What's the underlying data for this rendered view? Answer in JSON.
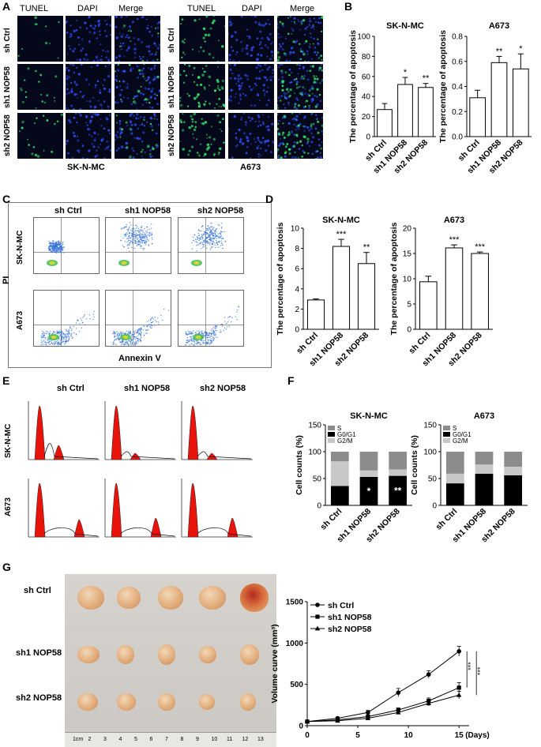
{
  "panels": {
    "A": {
      "letter": "A",
      "columns": [
        "TUNEL",
        "DAPI",
        "Merge"
      ],
      "rows": [
        "sh Ctrl",
        "sh1 NOP58",
        "sh2 NOP58"
      ],
      "cell_lines": [
        "SK-N-MC",
        "A673"
      ]
    },
    "C": {
      "letter": "C",
      "columns": [
        "sh Ctrl",
        "sh1 NOP58",
        "sh2 NOP58"
      ],
      "rows": [
        "SK-N-MC",
        "A673"
      ],
      "y_label": "PI",
      "x_label": "Annexin V"
    },
    "E": {
      "letter": "E",
      "columns": [
        "sh Ctrl",
        "sh1 NOP58",
        "sh2 NOP58"
      ],
      "rows": [
        "SK-N-MC",
        "A673"
      ]
    },
    "G": {
      "letter": "G",
      "rows": [
        "sh Ctrl",
        "sh1 NOP58",
        "sh2 NOP58"
      ],
      "ruler": [
        "1cm",
        "2",
        "3",
        "4",
        "5",
        "6",
        "7",
        "8",
        "9",
        "10",
        "11",
        "12",
        "13"
      ]
    }
  },
  "colors": {
    "bar": "#ffffff",
    "g0g1": "#000000",
    "s": "#8c8c8c",
    "g2m": "#c8c8c8",
    "peak": "#e8140c",
    "tunel": "#2ee86a",
    "dapi": "#2a4cf0"
  },
  "chart_data": [
    {
      "id": "B1",
      "letter": "B",
      "type": "bar",
      "title": "SK-N-MC",
      "ylabel": "The percentage of apoptosis",
      "ylim": [
        0,
        100
      ],
      "yticks": [
        0,
        20,
        40,
        60,
        80,
        100
      ],
      "categories": [
        "sh Ctrl",
        "sh1 NOP58",
        "sh2 NOP58"
      ],
      "values": [
        27,
        52,
        49
      ],
      "errors": [
        6,
        7,
        4
      ],
      "sig": [
        "",
        "*",
        "**"
      ]
    },
    {
      "id": "B2",
      "type": "bar",
      "title": "A673",
      "ylabel": "The percentage of apoptosis",
      "ylim": [
        0,
        0.8
      ],
      "yticks": [
        0.0,
        0.2,
        0.4,
        0.6,
        0.8
      ],
      "categories": [
        "sh Ctrl",
        "sh1 NOP58",
        "sh2 NOP58"
      ],
      "values": [
        0.31,
        0.59,
        0.54
      ],
      "errors": [
        0.06,
        0.05,
        0.12
      ],
      "sig": [
        "",
        "**",
        "*"
      ]
    },
    {
      "id": "D1",
      "letter": "D",
      "type": "bar",
      "title": "SK-N-MC",
      "ylabel": "The percentage of apoptosis",
      "ylim": [
        0,
        10
      ],
      "yticks": [
        0,
        2,
        4,
        6,
        8,
        10
      ],
      "categories": [
        "sh Ctrl",
        "sh1 NOP58",
        "sh2 NOP58"
      ],
      "values": [
        2.9,
        8.2,
        6.5
      ],
      "errors": [
        0.1,
        0.7,
        1.1
      ],
      "sig": [
        "",
        "***",
        "**"
      ]
    },
    {
      "id": "D2",
      "type": "bar",
      "title": "A673",
      "ylabel": "The percentage of apoptosis",
      "ylim": [
        0,
        20
      ],
      "yticks": [
        0,
        5,
        10,
        15,
        20
      ],
      "categories": [
        "sh Ctrl",
        "sh1 NOP58",
        "sh2 NOP58"
      ],
      "values": [
        9.4,
        16.1,
        15.0
      ],
      "errors": [
        1.1,
        0.6,
        0.3
      ],
      "sig": [
        "",
        "***",
        "***"
      ]
    },
    {
      "id": "F1",
      "letter": "F",
      "type": "bar",
      "stacked": true,
      "title": "SK-N-MC",
      "ylabel": "Cell counts (%)",
      "ylim": [
        0,
        150
      ],
      "yticks": [
        0,
        50,
        100,
        150
      ],
      "categories": [
        "sh Ctrl",
        "sh1 NOP58",
        "sh2 NOP58"
      ],
      "legend": [
        "S",
        "G0/G1",
        "G2/M"
      ],
      "series": [
        {
          "name": "G0/G1",
          "values": [
            36,
            53,
            55
          ]
        },
        {
          "name": "G2/M",
          "values": [
            46,
            12,
            12
          ]
        },
        {
          "name": "S",
          "values": [
            18,
            35,
            33
          ]
        }
      ],
      "sig": [
        "",
        "*",
        "**"
      ]
    },
    {
      "id": "F2",
      "type": "bar",
      "stacked": true,
      "title": "A673",
      "ylabel": "Cell counts (%)",
      "ylim": [
        0,
        150
      ],
      "yticks": [
        0,
        50,
        100,
        150
      ],
      "categories": [
        "sh Ctrl",
        "sh1 NOP58",
        "sh2 NOP58"
      ],
      "legend": [
        "S",
        "G0/G1",
        "G2/M"
      ],
      "series": [
        {
          "name": "G0/G1",
          "values": [
            41,
            59,
            56
          ]
        },
        {
          "name": "G2/M",
          "values": [
            18,
            17,
            16
          ]
        },
        {
          "name": "S",
          "values": [
            41,
            24,
            28
          ]
        }
      ],
      "sig": [
        "",
        "",
        ""
      ]
    },
    {
      "id": "G",
      "type": "line",
      "title": "",
      "ylabel": "Volume curve (mm³)",
      "xlabel": "(Days)",
      "ylim": [
        0,
        1500
      ],
      "yticks": [
        0,
        500,
        1000,
        1500
      ],
      "xlim": [
        0,
        16
      ],
      "xticks": [
        0,
        5,
        10,
        15
      ],
      "x": [
        0,
        3,
        6,
        9,
        12,
        15
      ],
      "series": [
        {
          "name": "sh Ctrl",
          "marker": "circle",
          "values": [
            50,
            90,
            160,
            400,
            620,
            900
          ],
          "errors": [
            10,
            15,
            25,
            50,
            45,
            60
          ]
        },
        {
          "name": "sh1 NOP58",
          "marker": "square",
          "values": [
            50,
            70,
            110,
            190,
            300,
            460
          ],
          "errors": [
            10,
            12,
            18,
            25,
            35,
            60
          ]
        },
        {
          "name": "sh2 NOP58",
          "marker": "triangle",
          "values": [
            50,
            60,
            90,
            160,
            270,
            370
          ],
          "errors": [
            10,
            12,
            15,
            20,
            30,
            45
          ]
        }
      ],
      "sig": [
        "***",
        "***"
      ]
    }
  ]
}
